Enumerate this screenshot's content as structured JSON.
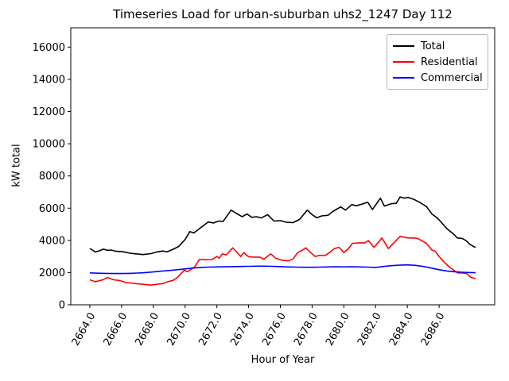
{
  "title": "Timeseries Load for urban-suburban uhs2_1247  Day 112",
  "chart_data": {
    "type": "line",
    "title": "Timeseries Load for urban-suburban uhs2_1247  Day 112",
    "xlabel": "Hour of Year",
    "ylabel": "kW total",
    "xlim": [
      2662.8,
      2689.5
    ],
    "ylim": [
      0,
      17200
    ],
    "grid": false,
    "legend_position": "upper right",
    "background_color": "#ffffff",
    "axes_edge_color": "#000000",
    "xtick_values": [
      2664,
      2666,
      2668,
      2670,
      2672,
      2674,
      2676,
      2678,
      2680,
      2682,
      2684,
      2686
    ],
    "xtick_labels": [
      "2664.0",
      "2666.0",
      "2668.0",
      "2670.0",
      "2672.0",
      "2674.0",
      "2676.0",
      "2678.0",
      "2680.0",
      "2682.0",
      "2684.0",
      "2686.0"
    ],
    "xtick_rotation_deg": 60,
    "ytick_values": [
      0,
      2000,
      4000,
      6000,
      8000,
      10000,
      12000,
      14000,
      16000
    ],
    "ytick_labels": [
      "0",
      "2000",
      "4000",
      "6000",
      "8000",
      "10000",
      "12000",
      "14000",
      "16000"
    ],
    "series": [
      {
        "name": "Total",
        "color": "#000000",
        "points": [
          [
            2664.0,
            3500
          ],
          [
            2664.35,
            3280
          ],
          [
            2664.6,
            3350
          ],
          [
            2664.85,
            3460
          ],
          [
            2665.1,
            3380
          ],
          [
            2665.35,
            3400
          ],
          [
            2665.6,
            3330
          ],
          [
            2666.1,
            3290
          ],
          [
            2666.5,
            3210
          ],
          [
            2666.85,
            3170
          ],
          [
            2667.35,
            3120
          ],
          [
            2667.85,
            3180
          ],
          [
            2668.2,
            3270
          ],
          [
            2668.6,
            3340
          ],
          [
            2668.85,
            3280
          ],
          [
            2669.25,
            3450
          ],
          [
            2669.6,
            3620
          ],
          [
            2670.0,
            4050
          ],
          [
            2670.3,
            4550
          ],
          [
            2670.55,
            4460
          ],
          [
            2671.0,
            4800
          ],
          [
            2671.45,
            5140
          ],
          [
            2671.8,
            5080
          ],
          [
            2672.1,
            5200
          ],
          [
            2672.4,
            5180
          ],
          [
            2672.9,
            5880
          ],
          [
            2673.2,
            5690
          ],
          [
            2673.6,
            5470
          ],
          [
            2673.9,
            5640
          ],
          [
            2674.2,
            5430
          ],
          [
            2674.5,
            5470
          ],
          [
            2674.8,
            5390
          ],
          [
            2675.2,
            5600
          ],
          [
            2675.6,
            5200
          ],
          [
            2676.0,
            5230
          ],
          [
            2676.4,
            5120
          ],
          [
            2676.8,
            5100
          ],
          [
            2677.2,
            5300
          ],
          [
            2677.7,
            5880
          ],
          [
            2678.0,
            5600
          ],
          [
            2678.3,
            5400
          ],
          [
            2678.6,
            5520
          ],
          [
            2679.0,
            5560
          ],
          [
            2679.3,
            5790
          ],
          [
            2679.8,
            6080
          ],
          [
            2680.1,
            5880
          ],
          [
            2680.5,
            6220
          ],
          [
            2680.8,
            6150
          ],
          [
            2681.1,
            6240
          ],
          [
            2681.5,
            6370
          ],
          [
            2681.8,
            5920
          ],
          [
            2682.3,
            6620
          ],
          [
            2682.55,
            6130
          ],
          [
            2683.0,
            6280
          ],
          [
            2683.3,
            6300
          ],
          [
            2683.55,
            6700
          ],
          [
            2683.8,
            6620
          ],
          [
            2684.05,
            6670
          ],
          [
            2684.4,
            6550
          ],
          [
            2684.8,
            6350
          ],
          [
            2685.2,
            6100
          ],
          [
            2685.55,
            5640
          ],
          [
            2685.9,
            5380
          ],
          [
            2686.2,
            5050
          ],
          [
            2686.5,
            4720
          ],
          [
            2686.9,
            4400
          ],
          [
            2687.15,
            4150
          ],
          [
            2687.45,
            4120
          ],
          [
            2687.7,
            3980
          ],
          [
            2687.95,
            3740
          ],
          [
            2688.3,
            3560
          ]
        ]
      },
      {
        "name": "Residential",
        "color": "#ff0000",
        "points": [
          [
            2664.0,
            1550
          ],
          [
            2664.35,
            1430
          ],
          [
            2664.6,
            1500
          ],
          [
            2664.85,
            1560
          ],
          [
            2665.1,
            1700
          ],
          [
            2665.5,
            1550
          ],
          [
            2665.9,
            1500
          ],
          [
            2666.3,
            1380
          ],
          [
            2666.85,
            1320
          ],
          [
            2667.35,
            1270
          ],
          [
            2667.85,
            1220
          ],
          [
            2668.2,
            1270
          ],
          [
            2668.6,
            1320
          ],
          [
            2668.9,
            1430
          ],
          [
            2669.25,
            1520
          ],
          [
            2669.5,
            1680
          ],
          [
            2669.75,
            1950
          ],
          [
            2669.95,
            2150
          ],
          [
            2670.15,
            2050
          ],
          [
            2670.6,
            2350
          ],
          [
            2670.9,
            2820
          ],
          [
            2671.3,
            2800
          ],
          [
            2671.7,
            2810
          ],
          [
            2672.0,
            3000
          ],
          [
            2672.15,
            2900
          ],
          [
            2672.35,
            3160
          ],
          [
            2672.6,
            3100
          ],
          [
            2673.0,
            3540
          ],
          [
            2673.3,
            3230
          ],
          [
            2673.5,
            3000
          ],
          [
            2673.7,
            3240
          ],
          [
            2674.0,
            2980
          ],
          [
            2674.35,
            2960
          ],
          [
            2674.7,
            2960
          ],
          [
            2674.95,
            2830
          ],
          [
            2675.4,
            3160
          ],
          [
            2675.7,
            2900
          ],
          [
            2676.0,
            2790
          ],
          [
            2676.5,
            2720
          ],
          [
            2676.8,
            2850
          ],
          [
            2677.1,
            3250
          ],
          [
            2677.4,
            3400
          ],
          [
            2677.6,
            3540
          ],
          [
            2677.9,
            3250
          ],
          [
            2678.2,
            3000
          ],
          [
            2678.5,
            3080
          ],
          [
            2678.8,
            3050
          ],
          [
            2679.1,
            3250
          ],
          [
            2679.4,
            3490
          ],
          [
            2679.7,
            3570
          ],
          [
            2680.0,
            3240
          ],
          [
            2680.3,
            3500
          ],
          [
            2680.55,
            3820
          ],
          [
            2681.0,
            3850
          ],
          [
            2681.3,
            3840
          ],
          [
            2681.55,
            3980
          ],
          [
            2681.9,
            3570
          ],
          [
            2682.4,
            4150
          ],
          [
            2682.8,
            3490
          ],
          [
            2683.1,
            3800
          ],
          [
            2683.55,
            4250
          ],
          [
            2684.05,
            4150
          ],
          [
            2684.4,
            4150
          ],
          [
            2684.65,
            4120
          ],
          [
            2685.2,
            3820
          ],
          [
            2685.55,
            3400
          ],
          [
            2685.75,
            3330
          ],
          [
            2686.0,
            3000
          ],
          [
            2686.3,
            2670
          ],
          [
            2686.65,
            2340
          ],
          [
            2686.9,
            2170
          ],
          [
            2687.15,
            1980
          ],
          [
            2687.5,
            1970
          ],
          [
            2687.75,
            1930
          ],
          [
            2688.0,
            1700
          ],
          [
            2688.3,
            1630
          ]
        ]
      },
      {
        "name": "Commercial",
        "color": "#0000ff",
        "points": [
          [
            2664.0,
            1980
          ],
          [
            2664.5,
            1960
          ],
          [
            2665.0,
            1950
          ],
          [
            2665.5,
            1940
          ],
          [
            2666.0,
            1940
          ],
          [
            2666.5,
            1950
          ],
          [
            2667.0,
            1970
          ],
          [
            2667.5,
            2000
          ],
          [
            2668.0,
            2040
          ],
          [
            2668.5,
            2090
          ],
          [
            2669.0,
            2130
          ],
          [
            2669.5,
            2180
          ],
          [
            2670.0,
            2230
          ],
          [
            2670.5,
            2280
          ],
          [
            2671.0,
            2320
          ],
          [
            2671.5,
            2340
          ],
          [
            2672.0,
            2350
          ],
          [
            2672.5,
            2360
          ],
          [
            2673.0,
            2370
          ],
          [
            2673.5,
            2380
          ],
          [
            2674.0,
            2390
          ],
          [
            2674.5,
            2400
          ],
          [
            2675.0,
            2400
          ],
          [
            2675.5,
            2390
          ],
          [
            2676.0,
            2370
          ],
          [
            2676.5,
            2350
          ],
          [
            2677.0,
            2340
          ],
          [
            2677.5,
            2330
          ],
          [
            2678.0,
            2330
          ],
          [
            2678.5,
            2340
          ],
          [
            2679.0,
            2350
          ],
          [
            2679.5,
            2360
          ],
          [
            2680.0,
            2350
          ],
          [
            2680.5,
            2360
          ],
          [
            2681.0,
            2350
          ],
          [
            2681.5,
            2340
          ],
          [
            2682.0,
            2320
          ],
          [
            2682.5,
            2380
          ],
          [
            2683.0,
            2430
          ],
          [
            2683.5,
            2460
          ],
          [
            2684.0,
            2480
          ],
          [
            2684.5,
            2450
          ],
          [
            2685.0,
            2380
          ],
          [
            2685.5,
            2280
          ],
          [
            2686.0,
            2180
          ],
          [
            2686.5,
            2100
          ],
          [
            2687.0,
            2050
          ],
          [
            2687.5,
            2020
          ],
          [
            2688.0,
            2000
          ],
          [
            2688.3,
            1990
          ]
        ]
      }
    ]
  }
}
